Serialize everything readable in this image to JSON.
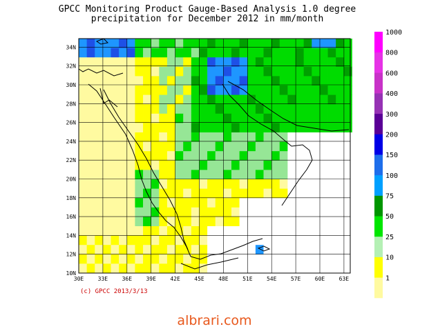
{
  "title_line1": "GPCC Monitoring Product Gauge-Based Analysis 1.0 degree",
  "title_line2": "precipitation for December  2012 in mm/month",
  "copyright": "(c) GPCC 2013/3/13",
  "watermark": "albrari.com",
  "lat_labels": [
    "10N",
    "12N",
    "14N",
    "16N",
    "18N",
    "20N",
    "22N",
    "24N",
    "26N",
    "28N",
    "30N",
    "32N",
    "34N"
  ],
  "lon_labels": [
    "30E",
    "33E",
    "36E",
    "39E",
    "42E",
    "45E",
    "48E",
    "51E",
    "54E",
    "57E",
    "60E",
    "63E"
  ],
  "legend": {
    "labels": [
      "1",
      "10",
      "25",
      "50",
      "75",
      "100",
      "150",
      "200",
      "300",
      "400",
      "600",
      "800",
      "1000"
    ],
    "colors": [
      "#fffaa0",
      "#ffff00",
      "#b4f0b4",
      "#00e600",
      "#009600",
      "#00a0ff",
      "#1e6eeb",
      "#0000e6",
      "#5a0096",
      "#9632b4",
      "#c832c8",
      "#e632e6",
      "#ff00ff"
    ]
  },
  "map_colors": {
    "none": "#ffffff",
    "pale": "#fffaa0",
    "yellow": "#ffff00",
    "lightgreen": "#96e696",
    "green": "#00dc00",
    "darkgreen": "#00a000",
    "lightblue": "#1e96ff",
    "blue": "#1e50e6"
  }
}
